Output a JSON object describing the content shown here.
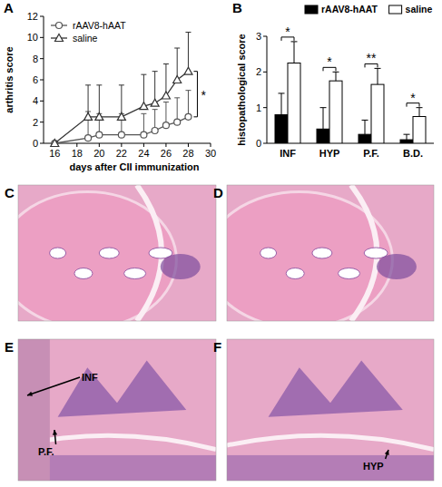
{
  "chart_data": [
    {
      "panel": "A",
      "type": "line",
      "x_label": "days after CII immunization",
      "y_label": "arthritis score",
      "x": [
        16,
        19,
        20,
        22,
        24,
        25,
        26,
        27,
        28
      ],
      "series": [
        {
          "name": "rAAV8-hAAT",
          "color": "#555555",
          "marker": "circle",
          "values": [
            0,
            0.5,
            0.8,
            0.8,
            0.8,
            1.2,
            1.7,
            2,
            2.5
          ],
          "errors": [
            0,
            2.5,
            2,
            2,
            2,
            2,
            2.2,
            2.3,
            2.5
          ]
        },
        {
          "name": "saline",
          "color": "#333333",
          "marker": "triangle",
          "values": [
            0,
            2.5,
            2.5,
            2.5,
            3.5,
            3.8,
            4.5,
            6,
            6.8
          ],
          "errors": [
            0,
            3,
            3,
            3,
            3,
            3,
            3,
            3,
            3.7
          ]
        }
      ],
      "xlim": [
        15,
        30
      ],
      "xticks": [
        16,
        18,
        20,
        22,
        24,
        26,
        28,
        30
      ],
      "ylim": [
        0,
        12
      ],
      "yticks": [
        0,
        2,
        4,
        6,
        8,
        10,
        12
      ],
      "legend": "top-left",
      "annotations": [
        {
          "text": "*",
          "x": 28
        }
      ]
    },
    {
      "panel": "B",
      "type": "bar",
      "y_label": "histopathological score",
      "categories": [
        "INF",
        "HYP",
        "P.F.",
        "B.D."
      ],
      "series": [
        {
          "name": "rAAV8-hAAT",
          "color": "#000000",
          "values": [
            0.8,
            0.4,
            0.25,
            0.1
          ],
          "errors": [
            0.6,
            0.6,
            0.4,
            0.15
          ]
        },
        {
          "name": "saline",
          "color": "#ffffff",
          "values": [
            2.25,
            1.75,
            1.65,
            0.75
          ],
          "errors": [
            0.6,
            0.25,
            0.45,
            0.25
          ]
        }
      ],
      "ylim": [
        0,
        3
      ],
      "yticks": [
        0,
        1,
        2,
        3
      ],
      "legend": "top-right",
      "annotations": [
        {
          "text": "*",
          "category": "INF"
        },
        {
          "text": "*",
          "category": "HYP"
        },
        {
          "text": "**",
          "category": "P.F."
        },
        {
          "text": "*",
          "category": "B.D."
        }
      ]
    }
  ],
  "images": [
    {
      "panel": "C",
      "annotations": []
    },
    {
      "panel": "D",
      "annotations": []
    },
    {
      "panel": "E",
      "annotations": [
        "INF",
        "P.F."
      ]
    },
    {
      "panel": "F",
      "annotations": [
        "HYP"
      ]
    }
  ]
}
